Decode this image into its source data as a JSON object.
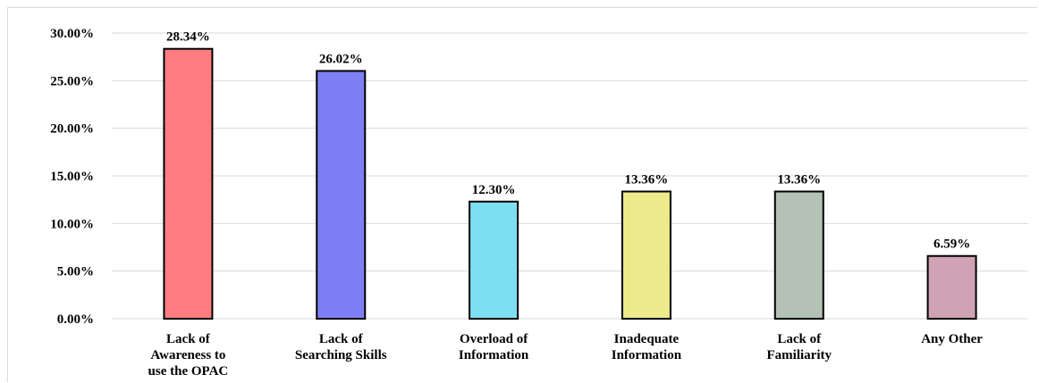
{
  "chart_data": {
    "type": "bar",
    "title": "",
    "xlabel": "",
    "ylabel": "",
    "categories": [
      [
        "Lack of",
        "Awareness to",
        "use the OPAC"
      ],
      [
        "Lack of",
        "Searching Skills"
      ],
      [
        "Overload of",
        "Information"
      ],
      [
        "Inadequate",
        "Information"
      ],
      [
        "Lack of",
        "Familiarity"
      ],
      [
        "Any Other"
      ]
    ],
    "values": [
      28.34,
      26.02,
      12.3,
      13.36,
      13.36,
      6.59
    ],
    "data_labels": [
      "28.34%",
      "26.02%",
      "12.30%",
      "13.36%",
      "13.36%",
      "6.59%"
    ],
    "ylim": [
      0,
      30
    ],
    "yticks": [
      0,
      5,
      10,
      15,
      20,
      25,
      30
    ],
    "ytick_labels": [
      "0.00%",
      "5.00%",
      "10.00%",
      "15.00%",
      "20.00%",
      "25.00%",
      "30.00%"
    ],
    "bar_colors": [
      "#ff7c80",
      "#7f7ff5",
      "#7fdff2",
      "#ecea8a",
      "#b3c2b4",
      "#cfa3b4"
    ],
    "gridlines": true,
    "legend": "none"
  }
}
